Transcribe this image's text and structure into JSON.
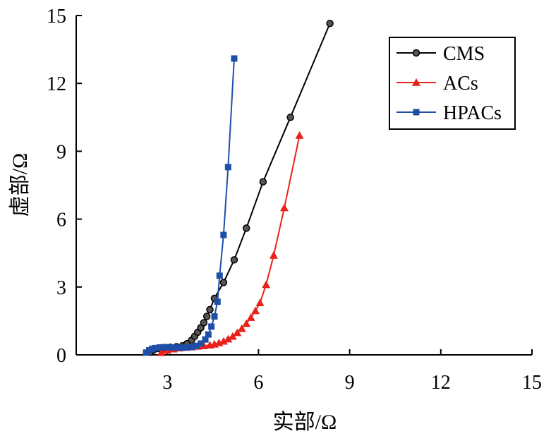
{
  "chart_data": {
    "type": "scatter",
    "title": "",
    "xlabel": "实部/Ω",
    "ylabel": "虚部/Ω",
    "xlim": [
      0,
      15
    ],
    "ylim": [
      0,
      15
    ],
    "xticks": [
      "3",
      "6",
      "9",
      "12",
      "15"
    ],
    "yticks": [
      "0",
      "3",
      "6",
      "9",
      "12",
      "15"
    ],
    "grid": false,
    "legend_position": "top-right",
    "series": [
      {
        "name": "CMS",
        "color": "#000000",
        "marker": "circle",
        "points": [
          [
            2.45,
            0.12
          ],
          [
            2.55,
            0.22
          ],
          [
            2.7,
            0.28
          ],
          [
            2.9,
            0.32
          ],
          [
            3.1,
            0.34
          ],
          [
            3.3,
            0.36
          ],
          [
            3.5,
            0.4
          ],
          [
            3.65,
            0.5
          ],
          [
            3.8,
            0.65
          ],
          [
            3.9,
            0.82
          ],
          [
            4.0,
            1.0
          ],
          [
            4.1,
            1.2
          ],
          [
            4.2,
            1.42
          ],
          [
            4.3,
            1.7
          ],
          [
            4.4,
            2.0
          ],
          [
            4.55,
            2.5
          ],
          [
            4.85,
            3.2
          ],
          [
            5.2,
            4.2
          ],
          [
            5.6,
            5.6
          ],
          [
            6.15,
            7.65
          ],
          [
            7.05,
            10.5
          ],
          [
            8.35,
            14.65
          ]
        ]
      },
      {
        "name": "ACs",
        "color": "#e8221b",
        "marker": "triangle",
        "points": [
          [
            2.8,
            0.1
          ],
          [
            3.0,
            0.2
          ],
          [
            3.2,
            0.26
          ],
          [
            3.4,
            0.3
          ],
          [
            3.6,
            0.33
          ],
          [
            3.8,
            0.35
          ],
          [
            4.0,
            0.38
          ],
          [
            4.2,
            0.4
          ],
          [
            4.4,
            0.43
          ],
          [
            4.55,
            0.47
          ],
          [
            4.7,
            0.53
          ],
          [
            4.85,
            0.6
          ],
          [
            5.0,
            0.7
          ],
          [
            5.15,
            0.82
          ],
          [
            5.3,
            0.98
          ],
          [
            5.45,
            1.16
          ],
          [
            5.6,
            1.38
          ],
          [
            5.75,
            1.65
          ],
          [
            5.9,
            1.95
          ],
          [
            6.05,
            2.3
          ],
          [
            6.25,
            3.1
          ],
          [
            6.5,
            4.4
          ],
          [
            6.85,
            6.5
          ],
          [
            7.35,
            9.7
          ]
        ]
      },
      {
        "name": "HPACs",
        "color": "#1f4ea8",
        "marker": "square",
        "points": [
          [
            2.3,
            0.1
          ],
          [
            2.4,
            0.2
          ],
          [
            2.5,
            0.27
          ],
          [
            2.6,
            0.3
          ],
          [
            2.75,
            0.33
          ],
          [
            2.9,
            0.34
          ],
          [
            3.05,
            0.34
          ],
          [
            3.2,
            0.33
          ],
          [
            3.35,
            0.32
          ],
          [
            3.5,
            0.32
          ],
          [
            3.65,
            0.33
          ],
          [
            3.8,
            0.35
          ],
          [
            3.95,
            0.4
          ],
          [
            4.1,
            0.5
          ],
          [
            4.25,
            0.68
          ],
          [
            4.35,
            0.9
          ],
          [
            4.45,
            1.25
          ],
          [
            4.55,
            1.7
          ],
          [
            4.65,
            2.35
          ],
          [
            4.72,
            3.5
          ],
          [
            4.85,
            5.3
          ],
          [
            5.0,
            8.3
          ],
          [
            5.2,
            13.1
          ]
        ]
      }
    ]
  }
}
